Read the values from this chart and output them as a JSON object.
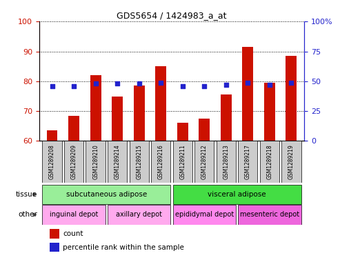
{
  "title": "GDS5654 / 1424983_a_at",
  "samples": [
    "GSM1289208",
    "GSM1289209",
    "GSM1289210",
    "GSM1289214",
    "GSM1289215",
    "GSM1289216",
    "GSM1289211",
    "GSM1289212",
    "GSM1289213",
    "GSM1289217",
    "GSM1289218",
    "GSM1289219"
  ],
  "count_values": [
    63.5,
    68.5,
    82.0,
    75.0,
    78.5,
    85.0,
    66.0,
    67.5,
    75.5,
    91.5,
    79.5,
    88.5
  ],
  "percentile_values": [
    46,
    46,
    48,
    48,
    48,
    49,
    46,
    46,
    47,
    49,
    47,
    49
  ],
  "ylim_left": [
    60,
    100
  ],
  "ylim_right": [
    0,
    100
  ],
  "yticks_left": [
    60,
    70,
    80,
    90,
    100
  ],
  "yticks_right": [
    0,
    25,
    50,
    75,
    100
  ],
  "bar_color": "#cc1100",
  "dot_color": "#2222cc",
  "tissue_groups": [
    {
      "label": "subcutaneous adipose",
      "start": 0,
      "end": 5,
      "color": "#99ee99"
    },
    {
      "label": "visceral adipose",
      "start": 6,
      "end": 11,
      "color": "#44dd44"
    }
  ],
  "other_groups": [
    {
      "label": "inguinal depot",
      "start": 0,
      "end": 2,
      "color": "#ffaaee"
    },
    {
      "label": "axillary depot",
      "start": 3,
      "end": 5,
      "color": "#ffaaee"
    },
    {
      "label": "epididymal depot",
      "start": 6,
      "end": 8,
      "color": "#ff88ee"
    },
    {
      "label": "mesenteric depot",
      "start": 9,
      "end": 11,
      "color": "#ee66dd"
    }
  ],
  "left_axis_color": "#cc1100",
  "right_axis_color": "#2222cc",
  "bar_width": 0.5,
  "sample_bg_color": "#cccccc",
  "figsize": [
    4.93,
    3.93
  ],
  "dpi": 100
}
